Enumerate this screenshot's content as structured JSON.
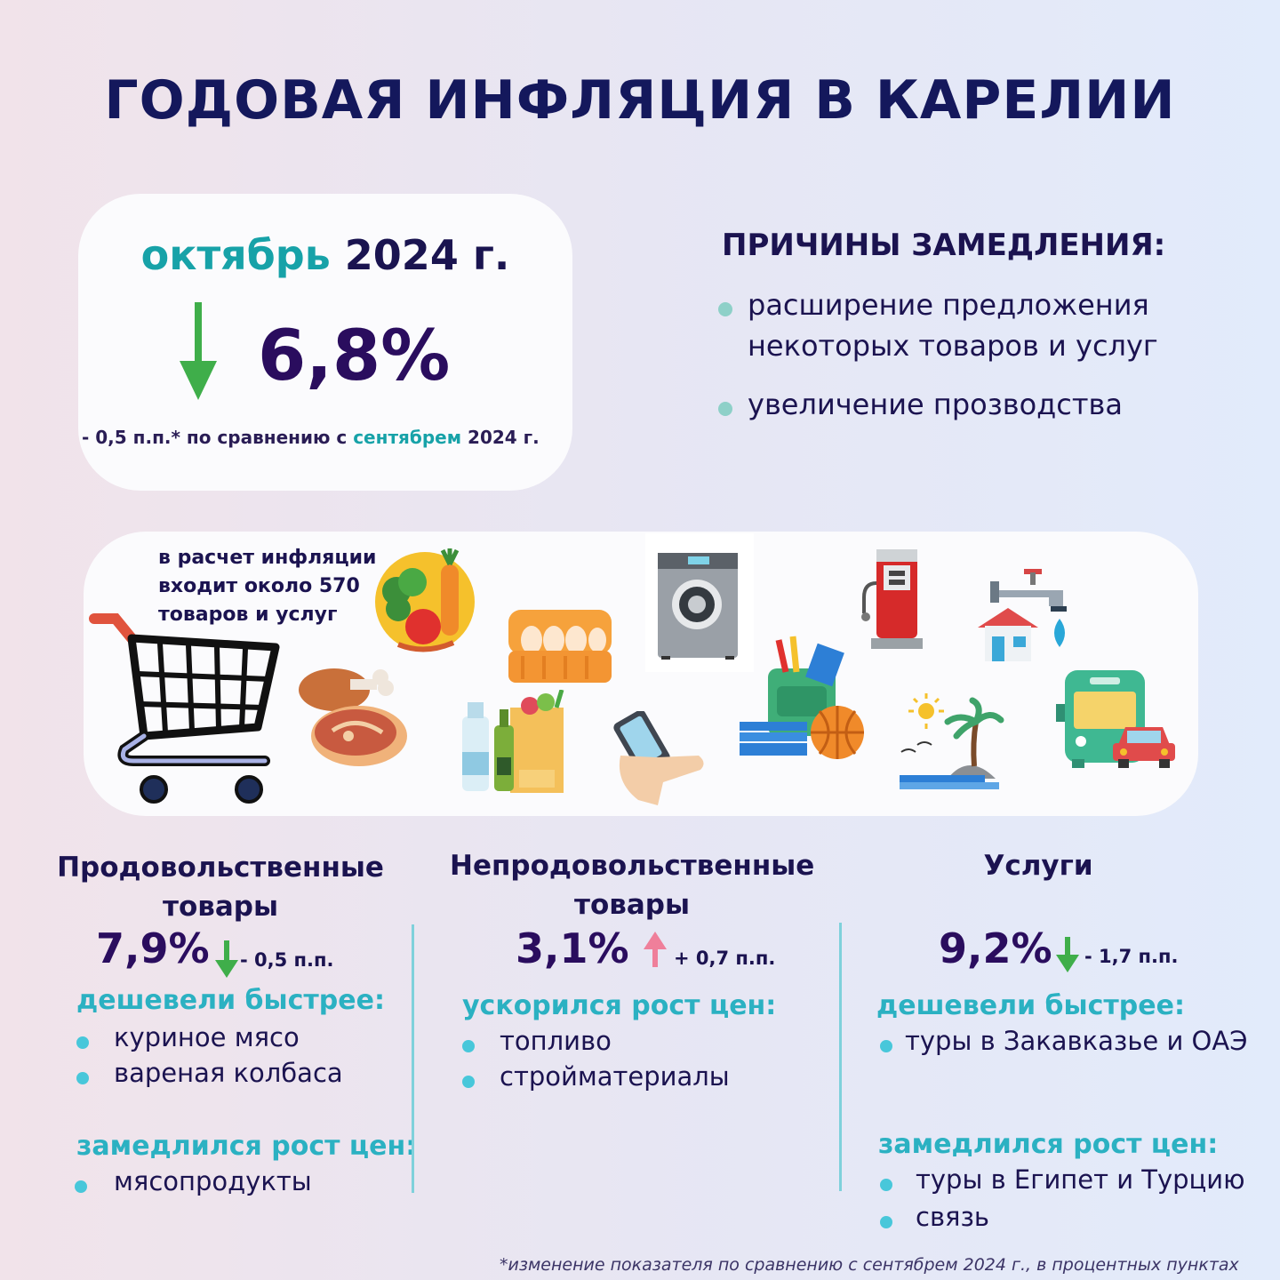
{
  "title": "ГОДОВАЯ ИНФЛЯЦИЯ В КАРЕЛИИ",
  "headline": {
    "month": "октябрь",
    "year": "2024 г.",
    "value": "6,8%",
    "direction": "down",
    "compare_prefix": "- 0,5 п.п.* по сравнению с",
    "compare_month": "сентябрем",
    "compare_year": "2024 г."
  },
  "reasons": {
    "title": "ПРИЧИНЫ ЗАМЕДЛЕНИЯ:",
    "items": [
      "расширение предложения некоторых товаров и услуг",
      "увеличение прозводства"
    ]
  },
  "panel": {
    "note_lines": [
      "в расчет инфляции",
      "входит около 570",
      "товаров и услуг"
    ],
    "icons": [
      "shopping-cart-icon",
      "vegetables-icon",
      "meat-icon",
      "eggs-icon",
      "washing-machine-icon",
      "groceries-icon",
      "smartphone-icon",
      "school-supplies-icon",
      "fuel-pump-icon",
      "utilities-icon",
      "beach-icon",
      "transport-icon"
    ]
  },
  "columns": [
    {
      "heading": "Продовольственные товары",
      "value": "7,9%",
      "direction": "down",
      "delta": "- 0,5 п.п.",
      "groups": [
        {
          "title": "дешевели быстрее:",
          "items": [
            "куриное мясо",
            "вареная колбаса"
          ]
        },
        {
          "title": "замедлился рост цен:",
          "items": [
            "мясопродукты"
          ]
        }
      ]
    },
    {
      "heading": "Непродовольственные товары",
      "value": "3,1%",
      "direction": "up",
      "delta": "+ 0,7 п.п.",
      "groups": [
        {
          "title": "ускорился рост цен:",
          "items": [
            "топливо",
            "стройматериалы"
          ]
        }
      ]
    },
    {
      "heading": "Услуги",
      "value": "9,2%",
      "direction": "down",
      "delta": "- 1,7 п.п.",
      "groups": [
        {
          "title": "дешевели быстрее:",
          "items": [
            "туры в Закавказье и ОАЭ"
          ]
        },
        {
          "title": "замедлился рост цен:",
          "items": [
            "туры в Египет и Турцию",
            "связь"
          ]
        }
      ]
    }
  ],
  "colors": {
    "down": "#3fae4a",
    "up": "#ef7f9a",
    "teal": "#17a2a8",
    "navy": "#14185c"
  },
  "footnote": "*изменение показателя по сравнению с сентябрем 2024 г., в процентных пунктах"
}
